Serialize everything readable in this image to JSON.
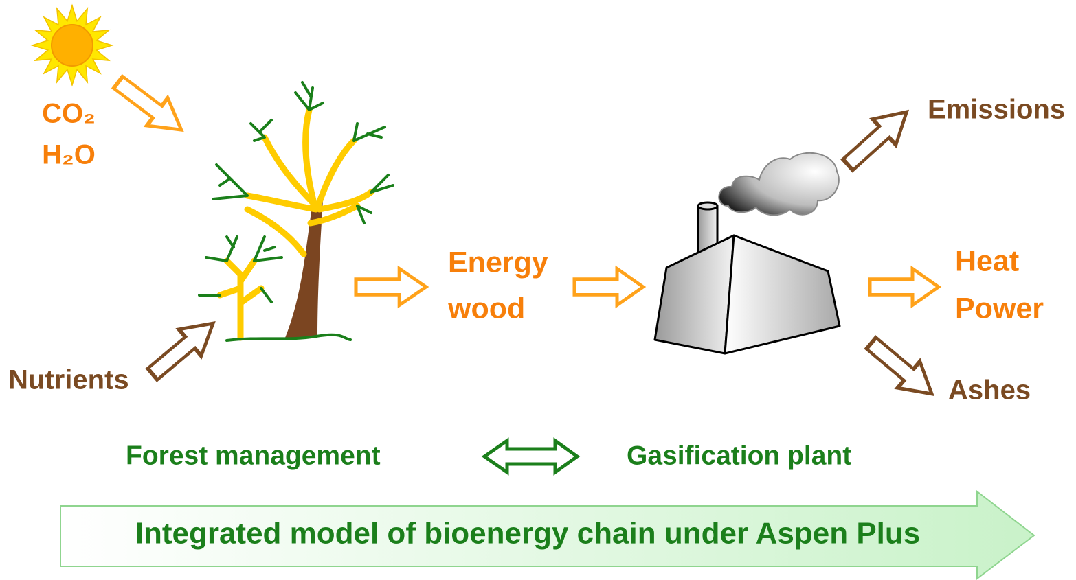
{
  "inputs": [
    "CO₂",
    "H₂O"
  ],
  "nutrients": "Nutrients",
  "intermediate": [
    "Energy",
    "wood"
  ],
  "emissions": "Emissions",
  "products": [
    "Heat",
    "Power"
  ],
  "ashes": "Ashes",
  "left_label": "Forest management",
  "right_label": "Gasification plant",
  "banner": "Integrated model of bioenergy chain under Aspen Plus"
}
